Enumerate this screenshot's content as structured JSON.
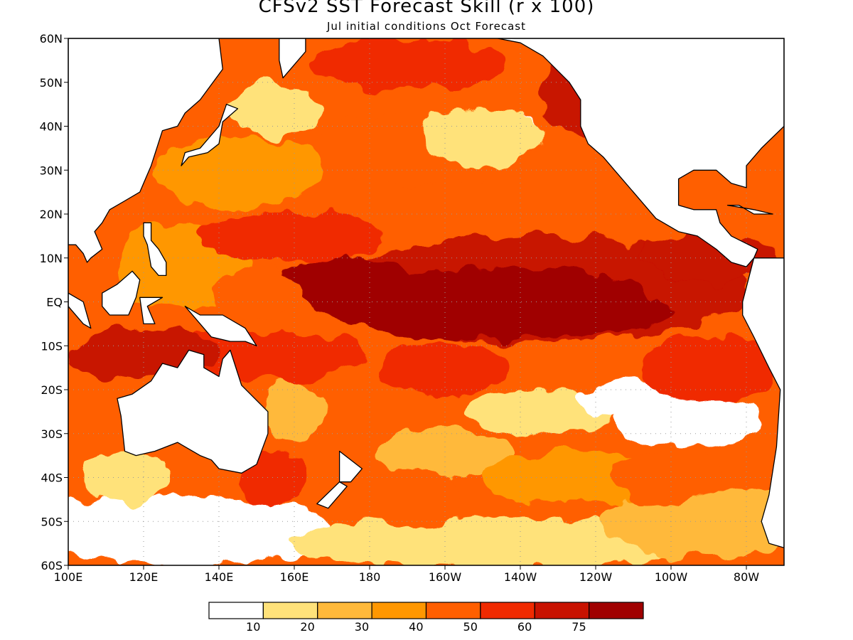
{
  "header": {
    "title": "CFSv2 SST Forecast Skill (r x 100)",
    "subtitle": "Jul initial conditions  Oct Forecast"
  },
  "axes": {
    "lat_labels": [
      "60N",
      "50N",
      "40N",
      "30N",
      "20N",
      "10N",
      "EQ",
      "10S",
      "20S",
      "30S",
      "40S",
      "50S",
      "60S"
    ],
    "lon_labels": [
      "100E",
      "120E",
      "140E",
      "160E",
      "180",
      "160W",
      "140W",
      "120W",
      "100W",
      "80W"
    ],
    "lon_range": [
      100,
      290
    ],
    "lat_range": [
      -60,
      60
    ]
  },
  "legend": {
    "thresholds": [
      "10",
      "20",
      "30",
      "40",
      "50",
      "60",
      "75"
    ],
    "colors": [
      "#ffffff",
      "#ffe27a",
      "#ffb93a",
      "#ff9700",
      "#ff5f00",
      "#f02a00",
      "#c81200",
      "#a00000"
    ]
  },
  "map_data": {
    "type": "filled-contour",
    "variable": "SST forecast skill (r x 100)",
    "land_color": "#ffffff",
    "regions": [
      {
        "name": "central-equatorial-pacific-core",
        "level": 8
      },
      {
        "name": "northeast-pacific",
        "level": 7
      },
      {
        "name": "tropical-west-pacific",
        "level": 5
      },
      {
        "name": "southeast-pacific-subtropics",
        "level": 3
      },
      {
        "name": "southern-ocean",
        "level": 2
      }
    ]
  }
}
